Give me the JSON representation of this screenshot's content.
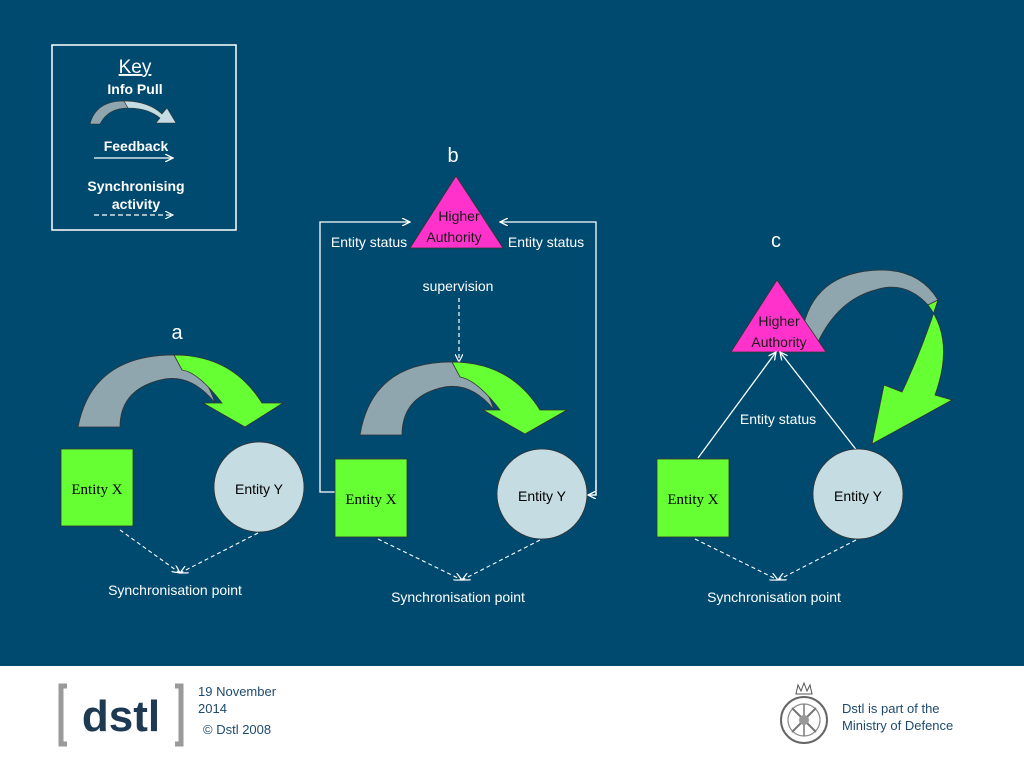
{
  "key": {
    "title": "Key",
    "info_pull": "Info Pull",
    "feedback": "Feedback",
    "sync_line1": "Synchronising",
    "sync_line2": "activity"
  },
  "panels": {
    "a": {
      "label": "a",
      "entity_x": "Entity X",
      "entity_y": "Entity Y",
      "sync": "Synchronisation point"
    },
    "b": {
      "label": "b",
      "authority_line1": "Higher",
      "authority_line2": "Authority",
      "status_left": "Entity status",
      "status_right": "Entity status",
      "supervision": "supervision",
      "entity_x": "Entity X",
      "entity_y": "Entity Y",
      "sync": "Synchronisation point"
    },
    "c": {
      "label": "c",
      "authority_line1": "Higher",
      "authority_line2": "Authority",
      "status": "Entity status",
      "entity_x": "Entity X",
      "entity_y": "Entity Y",
      "sync": "Synchronisation point"
    }
  },
  "footer": {
    "logo_text": "dstl",
    "date_line1": "19 November",
    "date_line2": "2014",
    "copyright": "© Dstl 2008",
    "mod_line1": "Dstl is part of the",
    "mod_line2": "Ministry of Defence"
  },
  "colors": {
    "background": "#004a70",
    "entity_x_fill": "#66ff33",
    "entity_y_fill": "#c5dde2",
    "authority_fill": "#ff33cc",
    "arrow_grey": "#8fa6ae",
    "arrow_green": "#66ff33"
  }
}
